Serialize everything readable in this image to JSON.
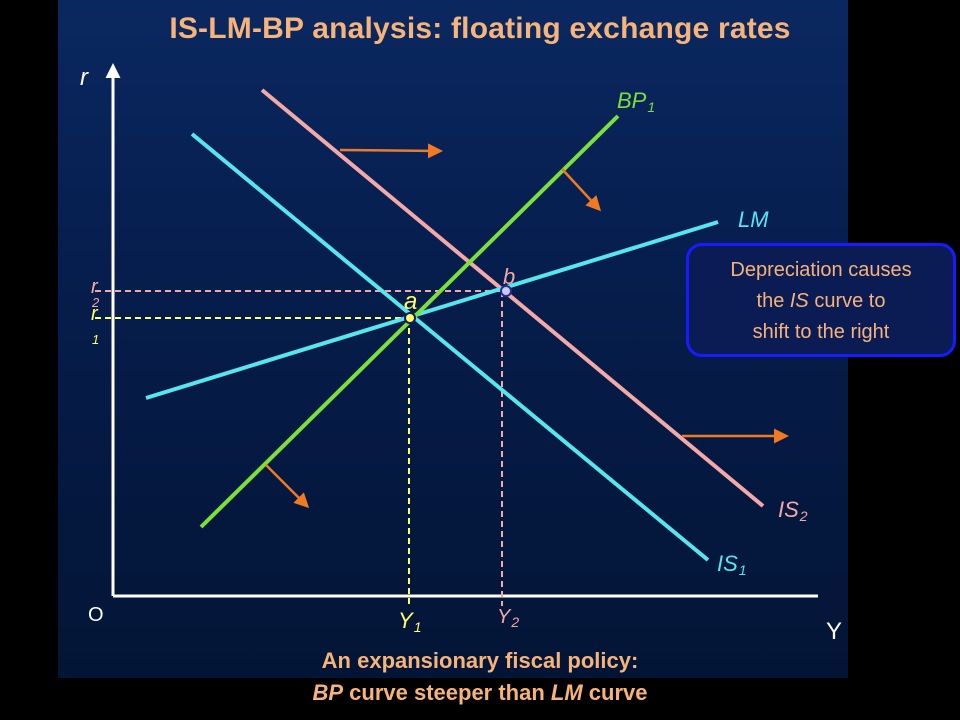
{
  "title": "IS-LM-BP analysis: floating exchange rates",
  "caption": {
    "line1": "An expansionary fiscal policy:",
    "line2_bp": "BP",
    "line2_mid": " curve steeper than ",
    "line2_lm": "LM",
    "line2_end": " curve"
  },
  "axes": {
    "y_label": "r",
    "x_label": "Y",
    "origin": "O"
  },
  "curves": {
    "bp1": {
      "name": "BP",
      "sub": "1",
      "color": "#7be03a"
    },
    "lm": {
      "name": "LM",
      "sub": "",
      "color": "#57e6ee"
    },
    "is1": {
      "name": "IS",
      "sub": "1",
      "color": "#57e6ee"
    },
    "is2": {
      "name": "IS",
      "sub": "2",
      "color": "#f4a9a9"
    }
  },
  "points": {
    "a": "a",
    "b": "b"
  },
  "ticks": {
    "r1_main": "r",
    "r1_sub": "1",
    "r2_main": "r",
    "r2_sub": "2",
    "y1_main": "Y",
    "y1_sub": "1",
    "y2_main": "Y",
    "y2_sub": "2"
  },
  "note": {
    "line1": "Depreciation causes",
    "line2_pre": "the ",
    "line2_is": "IS",
    "line2_post": " curve to",
    "line3": "shift to the right"
  },
  "colors": {
    "accent_text": "#f6b37a",
    "arrow": "#f07a22",
    "axis": "#ffffff",
    "guide_a": "#ffff66",
    "guide_b": "#f4a9a9",
    "note_border": "#1a1aff"
  }
}
